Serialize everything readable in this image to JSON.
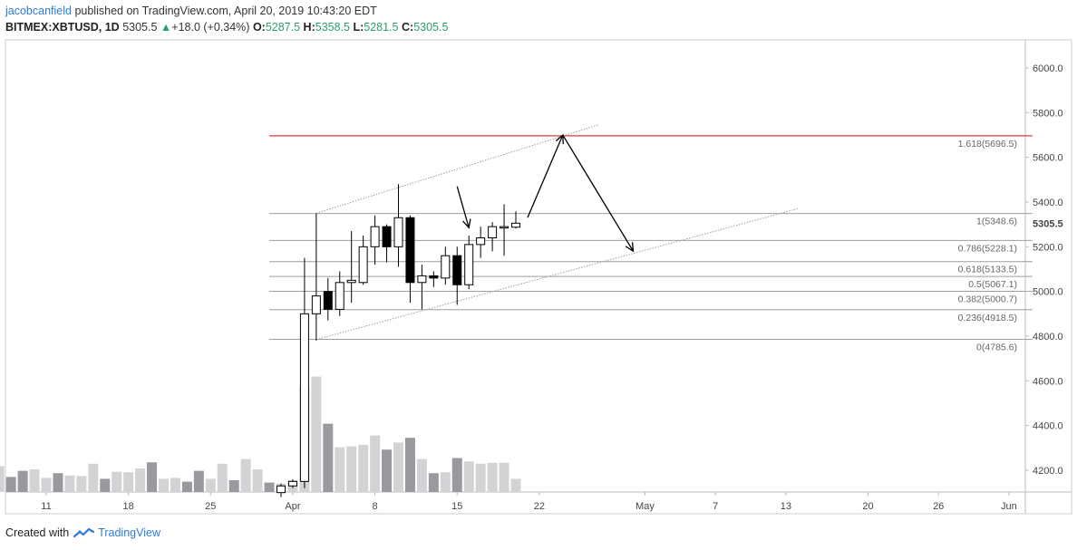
{
  "header": {
    "author": "jacobcanfield",
    "published": "published on TradingView.com, April 20, 2019 10:43:20 EDT",
    "symbol": "BITMEX:XBTUSD, 1D",
    "last": "5305.5",
    "change": "+18.0 (+0.34%)",
    "o_label": "O:",
    "o": "5287.5",
    "h_label": "H:",
    "h": "5358.5",
    "l_label": "L:",
    "l": "5281.5",
    "c_label": "C:",
    "c": "5305.5"
  },
  "footer": {
    "created_with": "Created with",
    "brand": "TradingView"
  },
  "colors": {
    "up_body": "#ffffff",
    "down_body": "#000000",
    "candle_outline": "#000000",
    "vol_up": "#d3d3d6",
    "vol_down": "#9a9a9e",
    "fib_line": "#9e9e9e",
    "fib_ext": "#e53935",
    "channel": "#a0a0a0",
    "header_green": "#26a06a"
  },
  "chart_data": {
    "type": "candlestick",
    "price_axis": {
      "ylim": [
        4100,
        6150
      ],
      "ticks": [
        4200,
        4400,
        4600,
        4800,
        5000,
        5200,
        5400,
        5600,
        5800,
        6000
      ],
      "tick_labels": [
        "4200.0",
        "4400.0",
        "4600.0",
        "4800.0",
        "5000.0",
        "5200.0",
        "5400.0",
        "5600.0",
        "5800.0",
        "6000.0"
      ],
      "last_price_label": "5305.5",
      "last_price": 5305.5
    },
    "x_axis": {
      "start_date": "2019-03-07",
      "end_date": "2019-06-06",
      "ticks": [
        {
          "date": "2019-03-11",
          "label": "11"
        },
        {
          "date": "2019-03-18",
          "label": "18"
        },
        {
          "date": "2019-03-25",
          "label": "25"
        },
        {
          "date": "2019-04-01",
          "label": "Apr"
        },
        {
          "date": "2019-04-08",
          "label": "8"
        },
        {
          "date": "2019-04-15",
          "label": "15"
        },
        {
          "date": "2019-04-22",
          "label": "22"
        },
        {
          "date": "2019-05-01",
          "label": "May"
        },
        {
          "date": "2019-05-07",
          "label": "7"
        },
        {
          "date": "2019-05-13",
          "label": "13"
        },
        {
          "date": "2019-05-20",
          "label": "20"
        },
        {
          "date": "2019-05-26",
          "label": "26"
        },
        {
          "date": "2019-06-01",
          "label": "Jun"
        }
      ]
    },
    "candles": [
      {
        "date": "2019-03-31",
        "o": 4100,
        "h": 4140,
        "l": 4080,
        "c": 4130
      },
      {
        "date": "2019-04-01",
        "o": 4130,
        "h": 4160,
        "l": 4120,
        "c": 4150
      },
      {
        "date": "2019-04-02",
        "o": 4150,
        "h": 5150,
        "l": 4120,
        "c": 4900
      },
      {
        "date": "2019-04-03",
        "o": 4900,
        "h": 5350,
        "l": 4780,
        "c": 4980
      },
      {
        "date": "2019-04-04",
        "o": 5000,
        "h": 5060,
        "l": 4870,
        "c": 4920
      },
      {
        "date": "2019-04-05",
        "o": 4920,
        "h": 5090,
        "l": 4890,
        "c": 5040
      },
      {
        "date": "2019-04-06",
        "o": 5040,
        "h": 5270,
        "l": 4950,
        "c": 5050
      },
      {
        "date": "2019-04-07",
        "o": 5040,
        "h": 5250,
        "l": 5030,
        "c": 5200
      },
      {
        "date": "2019-04-08",
        "o": 5200,
        "h": 5340,
        "l": 5120,
        "c": 5290
      },
      {
        "date": "2019-04-09",
        "o": 5290,
        "h": 5300,
        "l": 5130,
        "c": 5200
      },
      {
        "date": "2019-04-10",
        "o": 5200,
        "h": 5480,
        "l": 5110,
        "c": 5330
      },
      {
        "date": "2019-04-11",
        "o": 5330,
        "h": 5340,
        "l": 4950,
        "c": 5040
      },
      {
        "date": "2019-04-12",
        "o": 5040,
        "h": 5120,
        "l": 4920,
        "c": 5070
      },
      {
        "date": "2019-04-13",
        "o": 5070,
        "h": 5090,
        "l": 5020,
        "c": 5060
      },
      {
        "date": "2019-04-14",
        "o": 5060,
        "h": 5200,
        "l": 5030,
        "c": 5160
      },
      {
        "date": "2019-04-15",
        "o": 5160,
        "h": 5200,
        "l": 4940,
        "c": 5030
      },
      {
        "date": "2019-04-16",
        "o": 5030,
        "h": 5250,
        "l": 5010,
        "c": 5210
      },
      {
        "date": "2019-04-17",
        "o": 5210,
        "h": 5290,
        "l": 5150,
        "c": 5240
      },
      {
        "date": "2019-04-18",
        "o": 5240,
        "h": 5310,
        "l": 5180,
        "c": 5290
      },
      {
        "date": "2019-04-19",
        "o": 5290,
        "h": 5390,
        "l": 5160,
        "c": 5290
      },
      {
        "date": "2019-04-20",
        "o": 5287.5,
        "h": 5358.5,
        "l": 5281.5,
        "c": 5305.5
      }
    ],
    "volume_bars": [
      {
        "date": "2019-03-07",
        "v": 0.55,
        "dir": "up"
      },
      {
        "date": "2019-03-08",
        "v": 0.32,
        "dir": "down"
      },
      {
        "date": "2019-03-09",
        "v": 0.45,
        "dir": "down"
      },
      {
        "date": "2019-03-10",
        "v": 0.48,
        "dir": "up"
      },
      {
        "date": "2019-03-11",
        "v": 0.3,
        "dir": "up"
      },
      {
        "date": "2019-03-12",
        "v": 0.4,
        "dir": "down"
      },
      {
        "date": "2019-03-13",
        "v": 0.35,
        "dir": "up"
      },
      {
        "date": "2019-03-14",
        "v": 0.34,
        "dir": "up"
      },
      {
        "date": "2019-03-15",
        "v": 0.6,
        "dir": "up"
      },
      {
        "date": "2019-03-16",
        "v": 0.28,
        "dir": "down"
      },
      {
        "date": "2019-03-17",
        "v": 0.43,
        "dir": "up"
      },
      {
        "date": "2019-03-18",
        "v": 0.42,
        "dir": "up"
      },
      {
        "date": "2019-03-19",
        "v": 0.5,
        "dir": "up"
      },
      {
        "date": "2019-03-20",
        "v": 0.63,
        "dir": "down"
      },
      {
        "date": "2019-03-21",
        "v": 0.28,
        "dir": "up"
      },
      {
        "date": "2019-03-22",
        "v": 0.3,
        "dir": "up"
      },
      {
        "date": "2019-03-23",
        "v": 0.22,
        "dir": "down"
      },
      {
        "date": "2019-03-24",
        "v": 0.45,
        "dir": "down"
      },
      {
        "date": "2019-03-25",
        "v": 0.28,
        "dir": "up"
      },
      {
        "date": "2019-03-26",
        "v": 0.6,
        "dir": "up"
      },
      {
        "date": "2019-03-27",
        "v": 0.25,
        "dir": "down"
      },
      {
        "date": "2019-03-28",
        "v": 0.7,
        "dir": "up"
      },
      {
        "date": "2019-03-29",
        "v": 0.48,
        "dir": "up"
      },
      {
        "date": "2019-03-30",
        "v": 0.2,
        "dir": "down"
      },
      {
        "date": "2019-03-31",
        "v": 0.18,
        "dir": "up"
      },
      {
        "date": "2019-04-01",
        "v": 0.25,
        "dir": "up"
      },
      {
        "date": "2019-04-02",
        "v": 2.25,
        "dir": "up"
      },
      {
        "date": "2019-04-03",
        "v": 2.45,
        "dir": "up"
      },
      {
        "date": "2019-04-04",
        "v": 1.45,
        "dir": "down"
      },
      {
        "date": "2019-04-05",
        "v": 0.95,
        "dir": "up"
      },
      {
        "date": "2019-04-06",
        "v": 0.97,
        "dir": "up"
      },
      {
        "date": "2019-04-07",
        "v": 1.0,
        "dir": "up"
      },
      {
        "date": "2019-04-08",
        "v": 1.2,
        "dir": "up"
      },
      {
        "date": "2019-04-09",
        "v": 0.9,
        "dir": "down"
      },
      {
        "date": "2019-04-10",
        "v": 1.05,
        "dir": "up"
      },
      {
        "date": "2019-04-11",
        "v": 1.15,
        "dir": "down"
      },
      {
        "date": "2019-04-12",
        "v": 0.7,
        "dir": "up"
      },
      {
        "date": "2019-04-13",
        "v": 0.4,
        "dir": "down"
      },
      {
        "date": "2019-04-14",
        "v": 0.42,
        "dir": "up"
      },
      {
        "date": "2019-04-15",
        "v": 0.72,
        "dir": "down"
      },
      {
        "date": "2019-04-16",
        "v": 0.65,
        "dir": "up"
      },
      {
        "date": "2019-04-17",
        "v": 0.6,
        "dir": "up"
      },
      {
        "date": "2019-04-18",
        "v": 0.62,
        "dir": "up"
      },
      {
        "date": "2019-04-19",
        "v": 0.62,
        "dir": "up"
      },
      {
        "date": "2019-04-20",
        "v": 0.28,
        "dir": "up"
      }
    ],
    "fib_levels": [
      {
        "ratio": "0",
        "price": 4785.6,
        "label": "0(4785.6)"
      },
      {
        "ratio": "0.236",
        "price": 4918.5,
        "label": "0.236(4918.5)"
      },
      {
        "ratio": "0.382",
        "price": 5000.7,
        "label": "0.382(5000.7)"
      },
      {
        "ratio": "0.5",
        "price": 5067.1,
        "label": "0.5(5067.1)"
      },
      {
        "ratio": "0.618",
        "price": 5133.5,
        "label": "0.618(5133.5)"
      },
      {
        "ratio": "0.786",
        "price": 5228.1,
        "label": "0.786(5228.1)"
      },
      {
        "ratio": "1",
        "price": 5348.6,
        "label": "1(5348.6)"
      },
      {
        "ratio": "1.618",
        "price": 5696.5,
        "label": "1.618(5696.5)"
      }
    ],
    "fib_range": {
      "start": "2019-03-30",
      "end": "2019-06-03"
    },
    "channel": {
      "upper": [
        {
          "date": "2019-04-03",
          "price": 5350
        },
        {
          "date": "2019-04-27",
          "price": 5745
        }
      ],
      "lower": [
        {
          "date": "2019-04-03",
          "price": 4785
        },
        {
          "date": "2019-05-14",
          "price": 5370
        }
      ]
    },
    "arrows": [
      {
        "from": {
          "date": "2019-04-15",
          "price": 5470
        },
        "to": {
          "date": "2019-04-16",
          "price": 5285
        }
      },
      {
        "from": {
          "date": "2019-04-21",
          "price": 5330
        },
        "to": {
          "date": "2019-04-24",
          "price": 5700
        }
      },
      {
        "from": {
          "date": "2019-04-24",
          "price": 5700
        },
        "to": {
          "date": "2019-04-30",
          "price": 5180
        }
      }
    ]
  }
}
